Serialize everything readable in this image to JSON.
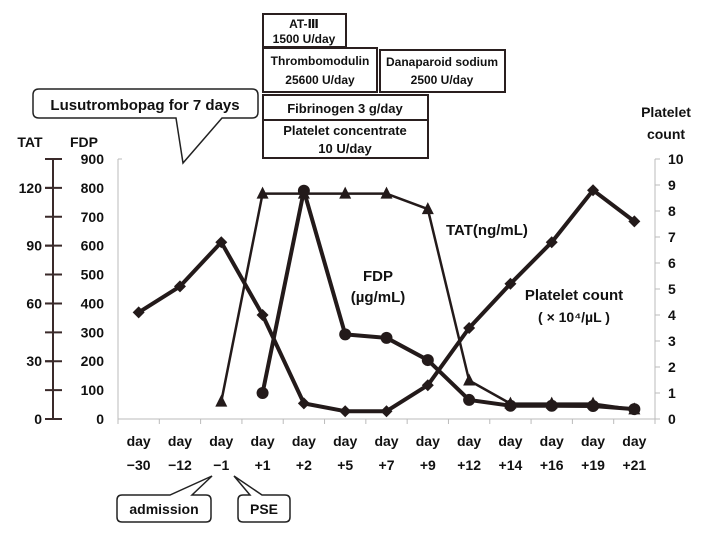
{
  "chart_data": {
    "type": "line",
    "categories": [
      "day −30",
      "day −12",
      "day −1",
      "day +1",
      "day +2",
      "day +5",
      "day +7",
      "day +9",
      "day +12",
      "day +14",
      "day +16",
      "day +19",
      "day +21"
    ],
    "category_lines": [
      [
        "day",
        "−30"
      ],
      [
        "day",
        "−12"
      ],
      [
        "day",
        "−1"
      ],
      [
        "day",
        "+1"
      ],
      [
        "day",
        "+2"
      ],
      [
        "day",
        "+5"
      ],
      [
        "day",
        "+7"
      ],
      [
        "day",
        "+9"
      ],
      [
        "day",
        "+12"
      ],
      [
        "day",
        "+14"
      ],
      [
        "day",
        "+16"
      ],
      [
        "day",
        "+19"
      ],
      [
        "day",
        "+21"
      ]
    ],
    "axes": {
      "tat": {
        "label": "TAT",
        "range": [
          0,
          135
        ],
        "ticks": [
          "0",
          "30",
          "60",
          "90",
          "120"
        ]
      },
      "fdp": {
        "label": "FDP",
        "range": [
          0,
          900
        ],
        "ticks": [
          "0",
          "100",
          "200",
          "300",
          "400",
          "500",
          "600",
          "700",
          "800",
          "900"
        ]
      },
      "platelet": {
        "label_line1": "Platelet",
        "label_line2": "count",
        "range": [
          0,
          10
        ],
        "ticks": [
          "0",
          "1",
          "2",
          "3",
          "4",
          "5",
          "6",
          "7",
          "8",
          "9",
          "10"
        ]
      }
    },
    "series": [
      {
        "name": "TAT(ng/mL)",
        "axis": "tat",
        "marker": "triangle",
        "label_lines": [
          "TAT(ng/mL)"
        ],
        "values": [
          null,
          null,
          9,
          117,
          117,
          117,
          117,
          109,
          20,
          8,
          8,
          8,
          5
        ]
      },
      {
        "name": "FDP (µg/mL)",
        "axis": "fdp",
        "marker": "circle",
        "label_lines": [
          "FDP",
          "(µg/mL)"
        ],
        "values": [
          null,
          null,
          null,
          90,
          790,
          293,
          281,
          204,
          66,
          46,
          46,
          45,
          34
        ]
      },
      {
        "name": "Platelet count (×10⁴/µL)",
        "axis": "platelet",
        "marker": "diamond",
        "label_lines": [
          "Platelet count",
          "( × 10⁴/µL )"
        ],
        "values": [
          4.1,
          5.1,
          6.8,
          4.0,
          0.6,
          0.3,
          0.3,
          1.3,
          3.5,
          5.2,
          6.8,
          8.8,
          7.6
        ]
      }
    ],
    "grid": false,
    "line_color": "#231a1a"
  },
  "annotations": {
    "lusutrombopag": "Lusutrombopag for 7 days",
    "at3_line1": "AT-Ⅲ",
    "at3_line2": "1500 U/day",
    "thrombomodulin_line1": "Thrombomodulin",
    "thrombomodulin_line2": "25600 U/day",
    "danaparoid_line1": "Danaparoid sodium",
    "danaparoid_line2": "2500 U/day",
    "fibrinogen": "Fibrinogen 3 g/day",
    "platelet_conc_line1": "Platelet concentrate",
    "platelet_conc_line2": "10 U/day",
    "admission": "admission",
    "pse": "PSE"
  }
}
